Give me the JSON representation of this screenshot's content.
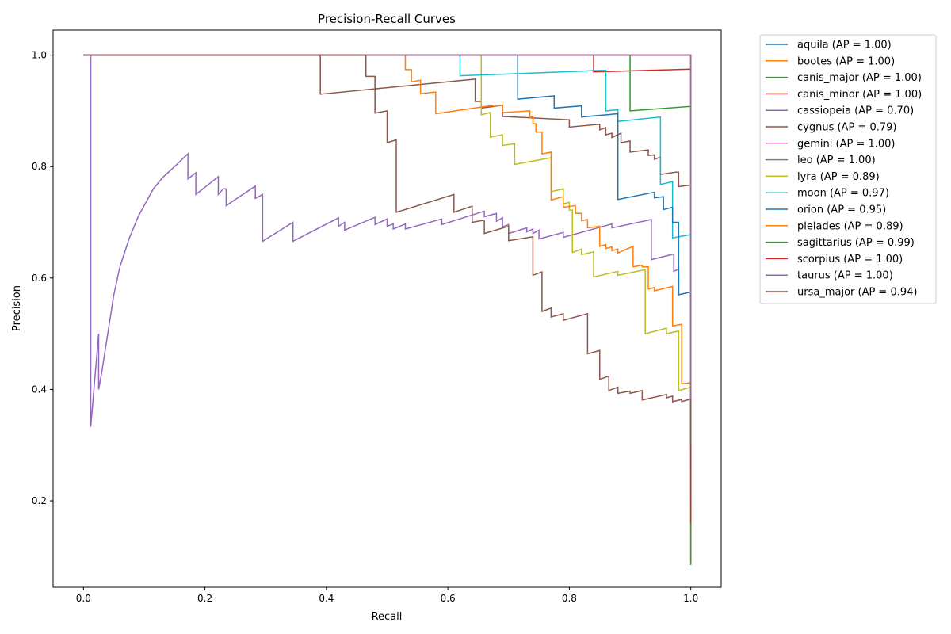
{
  "chart_data": {
    "type": "line",
    "title": "Precision-Recall Curves",
    "xlabel": "Recall",
    "ylabel": "Precision",
    "xlim": [
      -0.05,
      1.05
    ],
    "ylim": [
      0.045,
      1.045
    ],
    "xticks": [
      "0.0",
      "0.2",
      "0.4",
      "0.6",
      "0.8",
      "1.0"
    ],
    "yticks": [
      "0.2",
      "0.4",
      "0.6",
      "0.8",
      "1.0"
    ],
    "grid": false,
    "legend_position": "outside-top-right",
    "series": [
      {
        "name": "aquila (AP = 1.00)",
        "color": "#1f77b4",
        "points": [
          [
            0,
            1
          ],
          [
            1,
            1
          ],
          [
            1,
            0.97
          ]
        ]
      },
      {
        "name": "bootes (AP = 1.00)",
        "color": "#ff7f0e",
        "points": [
          [
            0,
            1
          ],
          [
            1,
            1
          ],
          [
            1,
            0.15
          ]
        ]
      },
      {
        "name": "canis_major (AP = 1.00)",
        "color": "#2ca02c",
        "points": [
          [
            0,
            1
          ],
          [
            1,
            1
          ],
          [
            1,
            0.09
          ]
        ]
      },
      {
        "name": "canis_minor (AP = 1.00)",
        "color": "#d62728",
        "points": [
          [
            0,
            1
          ],
          [
            0.84,
            1
          ],
          [
            0.84,
            0.97
          ],
          [
            1,
            0.975
          ],
          [
            1,
            0.09
          ]
        ]
      },
      {
        "name": "cassiopeia (AP = 0.70)",
        "color": "#9467bd",
        "points": [
          [
            0,
            1
          ],
          [
            0.012,
            1
          ],
          [
            0.012,
            0.333
          ],
          [
            0.025,
            0.5
          ],
          [
            0.025,
            0.4
          ],
          [
            0.03,
            0.43
          ],
          [
            0.04,
            0.5
          ],
          [
            0.05,
            0.57
          ],
          [
            0.06,
            0.62
          ],
          [
            0.075,
            0.67
          ],
          [
            0.09,
            0.71
          ],
          [
            0.1,
            0.73
          ],
          [
            0.115,
            0.76
          ],
          [
            0.13,
            0.78
          ],
          [
            0.15,
            0.8
          ],
          [
            0.172,
            0.823
          ],
          [
            0.172,
            0.778
          ],
          [
            0.185,
            0.789
          ],
          [
            0.185,
            0.75
          ],
          [
            0.222,
            0.782
          ],
          [
            0.222,
            0.75
          ],
          [
            0.23,
            0.76
          ],
          [
            0.235,
            0.76
          ],
          [
            0.235,
            0.73
          ],
          [
            0.283,
            0.765
          ],
          [
            0.283,
            0.743
          ],
          [
            0.295,
            0.75
          ],
          [
            0.295,
            0.666
          ],
          [
            0.345,
            0.7
          ],
          [
            0.345,
            0.666
          ],
          [
            0.42,
            0.708
          ],
          [
            0.42,
            0.693
          ],
          [
            0.43,
            0.7
          ],
          [
            0.43,
            0.686
          ],
          [
            0.48,
            0.709
          ],
          [
            0.48,
            0.696
          ],
          [
            0.5,
            0.706
          ],
          [
            0.5,
            0.693
          ],
          [
            0.51,
            0.697
          ],
          [
            0.51,
            0.688
          ],
          [
            0.53,
            0.697
          ],
          [
            0.53,
            0.688
          ],
          [
            0.59,
            0.706
          ],
          [
            0.59,
            0.696
          ],
          [
            0.66,
            0.72
          ],
          [
            0.66,
            0.71
          ],
          [
            0.68,
            0.716
          ],
          [
            0.68,
            0.702
          ],
          [
            0.69,
            0.708
          ],
          [
            0.69,
            0.692
          ],
          [
            0.7,
            0.696
          ],
          [
            0.7,
            0.68
          ],
          [
            0.73,
            0.69
          ],
          [
            0.73,
            0.683
          ],
          [
            0.74,
            0.688
          ],
          [
            0.74,
            0.68
          ],
          [
            0.75,
            0.686
          ],
          [
            0.75,
            0.67
          ],
          [
            0.79,
            0.682
          ],
          [
            0.79,
            0.673
          ],
          [
            0.87,
            0.697
          ],
          [
            0.87,
            0.69
          ],
          [
            0.935,
            0.705
          ],
          [
            0.935,
            0.633
          ],
          [
            0.972,
            0.643
          ],
          [
            0.972,
            0.612
          ],
          [
            0.98,
            0.616
          ],
          [
            0.98,
            0.57
          ],
          [
            1,
            0.575
          ],
          [
            1,
            0.25
          ]
        ]
      },
      {
        "name": "cygnus (AP = 0.79)",
        "color": "#8c564b",
        "points": [
          [
            0,
            1
          ],
          [
            0.39,
            1
          ],
          [
            0.39,
            0.93
          ],
          [
            0.645,
            0.957
          ],
          [
            0.645,
            0.917
          ],
          [
            0.655,
            0.917
          ],
          [
            0.655,
            0.905
          ],
          [
            0.69,
            0.91
          ],
          [
            0.69,
            0.89
          ],
          [
            0.8,
            0.884
          ],
          [
            0.8,
            0.871
          ],
          [
            0.85,
            0.876
          ],
          [
            0.85,
            0.866
          ],
          [
            0.86,
            0.87
          ],
          [
            0.86,
            0.857
          ],
          [
            0.87,
            0.86
          ],
          [
            0.87,
            0.852
          ],
          [
            0.885,
            0.86
          ],
          [
            0.885,
            0.843
          ],
          [
            0.9,
            0.846
          ],
          [
            0.9,
            0.826
          ],
          [
            0.93,
            0.83
          ],
          [
            0.93,
            0.82
          ],
          [
            0.94,
            0.821
          ],
          [
            0.94,
            0.813
          ],
          [
            0.95,
            0.817
          ],
          [
            0.95,
            0.786
          ],
          [
            0.975,
            0.79
          ],
          [
            0.975,
            0.79
          ],
          [
            0.98,
            0.79
          ],
          [
            0.98,
            0.764
          ],
          [
            1,
            0.767
          ],
          [
            1,
            0.3
          ]
        ]
      },
      {
        "name": "gemini (AP = 1.00)",
        "color": "#e377c2",
        "points": [
          [
            0,
            1
          ],
          [
            1,
            1
          ],
          [
            1,
            0.19
          ]
        ]
      },
      {
        "name": "leo (AP = 1.00)",
        "color": "#7f7f7f",
        "points": [
          [
            0,
            1
          ],
          [
            1,
            1
          ],
          [
            1,
            0.2
          ]
        ]
      },
      {
        "name": "lyra (AP = 0.89)",
        "color": "#bcbd22",
        "points": [
          [
            0,
            1
          ],
          [
            0.655,
            1
          ],
          [
            0.655,
            0.893
          ],
          [
            0.67,
            0.897
          ],
          [
            0.67,
            0.853
          ],
          [
            0.69,
            0.857
          ],
          [
            0.69,
            0.838
          ],
          [
            0.71,
            0.841
          ],
          [
            0.71,
            0.804
          ],
          [
            0.77,
            0.816
          ],
          [
            0.77,
            0.755
          ],
          [
            0.79,
            0.76
          ],
          [
            0.79,
            0.733
          ],
          [
            0.8,
            0.736
          ],
          [
            0.8,
            0.722
          ],
          [
            0.805,
            0.722
          ],
          [
            0.805,
            0.646
          ],
          [
            0.82,
            0.652
          ],
          [
            0.82,
            0.642
          ],
          [
            0.84,
            0.647
          ],
          [
            0.84,
            0.602
          ],
          [
            0.88,
            0.612
          ],
          [
            0.88,
            0.605
          ],
          [
            0.925,
            0.615
          ],
          [
            0.925,
            0.5
          ],
          [
            0.96,
            0.51
          ],
          [
            0.96,
            0.5
          ],
          [
            0.98,
            0.505
          ],
          [
            0.98,
            0.398
          ],
          [
            1,
            0.404
          ],
          [
            1,
            0.3
          ]
        ]
      },
      {
        "name": "moon (AP = 0.97)",
        "color": "#17becf",
        "points": [
          [
            0,
            1
          ],
          [
            0.62,
            1
          ],
          [
            0.62,
            0.963
          ],
          [
            0.86,
            0.973
          ],
          [
            0.86,
            0.9
          ],
          [
            0.88,
            0.902
          ],
          [
            0.88,
            0.881
          ],
          [
            0.95,
            0.889
          ],
          [
            0.95,
            0.768
          ],
          [
            0.97,
            0.773
          ],
          [
            0.97,
            0.672
          ],
          [
            1,
            0.678
          ],
          [
            1,
            0.3
          ]
        ]
      },
      {
        "name": "orion (AP = 0.95)",
        "color": "#1f77b4",
        "points": [
          [
            0,
            1
          ],
          [
            0.715,
            1
          ],
          [
            0.715,
            0.921
          ],
          [
            0.775,
            0.927
          ],
          [
            0.775,
            0.905
          ],
          [
            0.82,
            0.909
          ],
          [
            0.82,
            0.889
          ],
          [
            0.88,
            0.895
          ],
          [
            0.88,
            0.741
          ],
          [
            0.94,
            0.754
          ],
          [
            0.94,
            0.744
          ],
          [
            0.955,
            0.746
          ],
          [
            0.955,
            0.723
          ],
          [
            0.97,
            0.727
          ],
          [
            0.97,
            0.7
          ],
          [
            0.98,
            0.7
          ],
          [
            0.98,
            0.57
          ],
          [
            1,
            0.575
          ],
          [
            1,
            0.3
          ]
        ]
      },
      {
        "name": "pleiades (AP = 0.89)",
        "color": "#ff7f0e",
        "points": [
          [
            0,
            1
          ],
          [
            0.53,
            1
          ],
          [
            0.53,
            0.974
          ],
          [
            0.54,
            0.974
          ],
          [
            0.54,
            0.952
          ],
          [
            0.555,
            0.955
          ],
          [
            0.555,
            0.931
          ],
          [
            0.58,
            0.934
          ],
          [
            0.58,
            0.895
          ],
          [
            0.675,
            0.91
          ],
          [
            0.675,
            0.908
          ],
          [
            0.69,
            0.91
          ],
          [
            0.69,
            0.897
          ],
          [
            0.735,
            0.9
          ],
          [
            0.735,
            0.888
          ],
          [
            0.74,
            0.89
          ],
          [
            0.74,
            0.877
          ],
          [
            0.745,
            0.877
          ],
          [
            0.745,
            0.862
          ],
          [
            0.755,
            0.862
          ],
          [
            0.755,
            0.823
          ],
          [
            0.77,
            0.826
          ],
          [
            0.77,
            0.74
          ],
          [
            0.79,
            0.746
          ],
          [
            0.79,
            0.727
          ],
          [
            0.81,
            0.73
          ],
          [
            0.81,
            0.716
          ],
          [
            0.82,
            0.716
          ],
          [
            0.82,
            0.703
          ],
          [
            0.83,
            0.705
          ],
          [
            0.83,
            0.69
          ],
          [
            0.85,
            0.693
          ],
          [
            0.85,
            0.657
          ],
          [
            0.86,
            0.66
          ],
          [
            0.86,
            0.653
          ],
          [
            0.87,
            0.656
          ],
          [
            0.87,
            0.649
          ],
          [
            0.88,
            0.652
          ],
          [
            0.88,
            0.645
          ],
          [
            0.905,
            0.657
          ],
          [
            0.905,
            0.62
          ],
          [
            0.92,
            0.623
          ],
          [
            0.92,
            0.62
          ],
          [
            0.93,
            0.62
          ],
          [
            0.93,
            0.58
          ],
          [
            0.94,
            0.583
          ],
          [
            0.94,
            0.577
          ],
          [
            0.97,
            0.585
          ],
          [
            0.97,
            0.514
          ],
          [
            0.985,
            0.517
          ],
          [
            0.985,
            0.41
          ],
          [
            1,
            0.412
          ],
          [
            1,
            0.3
          ]
        ]
      },
      {
        "name": "sagittarius (AP = 0.99)",
        "color": "#2ca02c",
        "points": [
          [
            0,
            1
          ],
          [
            0.9,
            1
          ],
          [
            0.9,
            0.9
          ],
          [
            1,
            0.908
          ],
          [
            1,
            0.085
          ]
        ]
      },
      {
        "name": "scorpius (AP = 1.00)",
        "color": "#d62728",
        "points": [
          [
            0,
            1
          ],
          [
            1,
            1
          ],
          [
            1,
            0.16
          ]
        ]
      },
      {
        "name": "taurus (AP = 1.00)",
        "color": "#9467bd",
        "points": [
          [
            0,
            1
          ],
          [
            1,
            1
          ],
          [
            1,
            0.3
          ]
        ]
      },
      {
        "name": "ursa_major (AP = 0.94)",
        "color": "#8c564b",
        "points": [
          [
            0,
            1
          ],
          [
            0.465,
            1
          ],
          [
            0.465,
            0.962
          ],
          [
            0.48,
            0.962
          ],
          [
            0.48,
            0.896
          ],
          [
            0.5,
            0.9
          ],
          [
            0.5,
            0.843
          ],
          [
            0.515,
            0.848
          ],
          [
            0.515,
            0.718
          ],
          [
            0.61,
            0.75
          ],
          [
            0.61,
            0.718
          ],
          [
            0.64,
            0.729
          ],
          [
            0.64,
            0.7
          ],
          [
            0.66,
            0.704
          ],
          [
            0.66,
            0.68
          ],
          [
            0.7,
            0.693
          ],
          [
            0.7,
            0.667
          ],
          [
            0.74,
            0.674
          ],
          [
            0.74,
            0.605
          ],
          [
            0.755,
            0.611
          ],
          [
            0.755,
            0.54
          ],
          [
            0.77,
            0.546
          ],
          [
            0.77,
            0.53
          ],
          [
            0.79,
            0.536
          ],
          [
            0.79,
            0.524
          ],
          [
            0.83,
            0.536
          ],
          [
            0.83,
            0.464
          ],
          [
            0.85,
            0.47
          ],
          [
            0.85,
            0.418
          ],
          [
            0.865,
            0.424
          ],
          [
            0.865,
            0.398
          ],
          [
            0.88,
            0.404
          ],
          [
            0.88,
            0.393
          ],
          [
            0.9,
            0.397
          ],
          [
            0.9,
            0.393
          ],
          [
            0.92,
            0.398
          ],
          [
            0.92,
            0.381
          ],
          [
            0.96,
            0.391
          ],
          [
            0.96,
            0.385
          ],
          [
            0.97,
            0.388
          ],
          [
            0.97,
            0.378
          ],
          [
            0.985,
            0.382
          ],
          [
            0.985,
            0.378
          ],
          [
            1,
            0.383
          ],
          [
            1,
            0.3
          ]
        ]
      }
    ]
  }
}
